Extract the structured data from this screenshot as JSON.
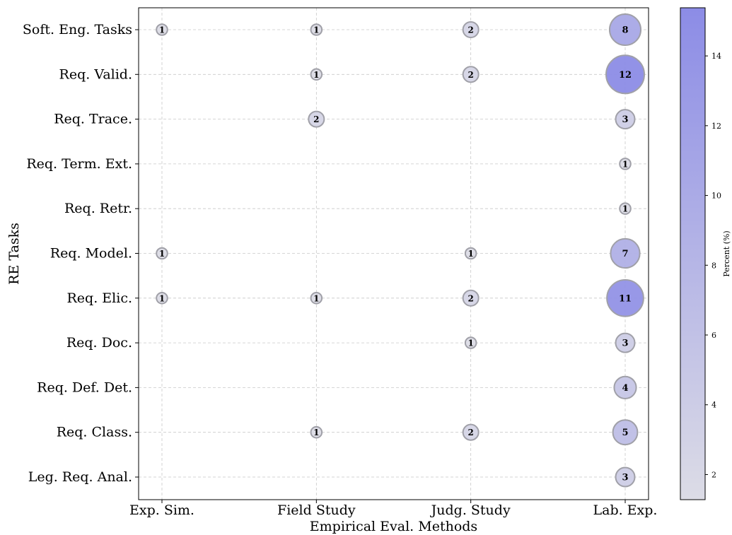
{
  "chart_data": {
    "type": "scatter",
    "subtype": "bubble",
    "xlabel": "Empirical Eval. Methods",
    "ylabel": "RE Tasks",
    "x_categories": [
      "Exp. Sim.",
      "Field Study",
      "Judg. Study",
      "Lab. Exp."
    ],
    "y_categories": [
      "Soft. Eng. Tasks",
      "Req. Valid.",
      "Req. Trace.",
      "Req. Term. Ext.",
      "Req. Retr.",
      "Req. Model.",
      "Req. Elic.",
      "Req. Doc.",
      "Req. Def. Det.",
      "Req. Class.",
      "Leg. Req. Anal."
    ],
    "points": [
      {
        "x": "Exp. Sim.",
        "y": "Soft. Eng. Tasks",
        "count": 1
      },
      {
        "x": "Field Study",
        "y": "Soft. Eng. Tasks",
        "count": 1
      },
      {
        "x": "Judg. Study",
        "y": "Soft. Eng. Tasks",
        "count": 2
      },
      {
        "x": "Lab. Exp.",
        "y": "Soft. Eng. Tasks",
        "count": 8
      },
      {
        "x": "Field Study",
        "y": "Req. Valid.",
        "count": 1
      },
      {
        "x": "Judg. Study",
        "y": "Req. Valid.",
        "count": 2
      },
      {
        "x": "Lab. Exp.",
        "y": "Req. Valid.",
        "count": 12
      },
      {
        "x": "Field Study",
        "y": "Req. Trace.",
        "count": 2
      },
      {
        "x": "Lab. Exp.",
        "y": "Req. Trace.",
        "count": 3
      },
      {
        "x": "Lab. Exp.",
        "y": "Req. Term. Ext.",
        "count": 1
      },
      {
        "x": "Lab. Exp.",
        "y": "Req. Retr.",
        "count": 1
      },
      {
        "x": "Exp. Sim.",
        "y": "Req. Model.",
        "count": 1
      },
      {
        "x": "Judg. Study",
        "y": "Req. Model.",
        "count": 1
      },
      {
        "x": "Lab. Exp.",
        "y": "Req. Model.",
        "count": 7
      },
      {
        "x": "Exp. Sim.",
        "y": "Req. Elic.",
        "count": 1
      },
      {
        "x": "Field Study",
        "y": "Req. Elic.",
        "count": 1
      },
      {
        "x": "Judg. Study",
        "y": "Req. Elic.",
        "count": 2
      },
      {
        "x": "Lab. Exp.",
        "y": "Req. Elic.",
        "count": 11
      },
      {
        "x": "Judg. Study",
        "y": "Req. Doc.",
        "count": 1
      },
      {
        "x": "Lab. Exp.",
        "y": "Req. Doc.",
        "count": 3
      },
      {
        "x": "Lab. Exp.",
        "y": "Req. Def. Det.",
        "count": 4
      },
      {
        "x": "Field Study",
        "y": "Req. Class.",
        "count": 1
      },
      {
        "x": "Judg. Study",
        "y": "Req. Class.",
        "count": 2
      },
      {
        "x": "Lab. Exp.",
        "y": "Req. Class.",
        "count": 5
      },
      {
        "x": "Lab. Exp.",
        "y": "Leg. Req. Anal.",
        "count": 3
      }
    ],
    "grid": true,
    "colorbar": {
      "label": "Percent (%)",
      "ticks": [
        2,
        4,
        6,
        8,
        10,
        12,
        14
      ],
      "range": [
        1.28,
        15.38
      ],
      "color_low": "#dcdce6",
      "color_high": "#8c8ce6"
    }
  }
}
